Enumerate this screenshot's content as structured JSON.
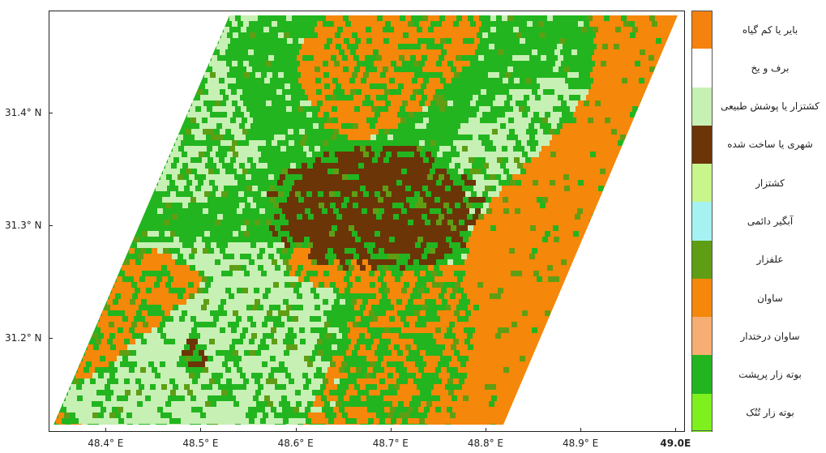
{
  "map": {
    "x_ticks": [
      "48.4° E",
      "48.5° E",
      "48.6° E",
      "48.7° E",
      "48.8° E",
      "48.9° E",
      "49.0E"
    ],
    "y_ticks": [
      "31.4° N",
      "31.3° N",
      "31.2° N"
    ],
    "x_tick_values": [
      48.4,
      48.5,
      48.6,
      48.7,
      48.8,
      48.9,
      49.0
    ],
    "y_tick_values": [
      31.4,
      31.3,
      31.2
    ],
    "lon_range": [
      48.34,
      49.01
    ],
    "lat_range": [
      31.116,
      31.491
    ]
  },
  "legend": {
    "items": [
      {
        "label": "بایر یا کم گیاه",
        "color": "#f5820f"
      },
      {
        "label": "برف و یخ",
        "color": "#ffffff"
      },
      {
        "label": "کشتزار یا پوشش طبیعی",
        "color": "#c7f0b4"
      },
      {
        "label": "شهری یا ساخت شده",
        "color": "#6b3508"
      },
      {
        "label": "کشتزار",
        "color": "#c8f58c"
      },
      {
        "label": "آبگیر دائمی",
        "color": "#a6f2f2"
      },
      {
        "label": "علفزار",
        "color": "#5f9e14"
      },
      {
        "label": "ساوان",
        "color": "#f5870a"
      },
      {
        "label": "ساوان درختدار",
        "color": "#f7ae72"
      },
      {
        "label": "بوته زار پرپشت",
        "color": "#22b51f"
      },
      {
        "label": "بوته زار تُنُک",
        "color": "#7df01e"
      }
    ]
  }
}
